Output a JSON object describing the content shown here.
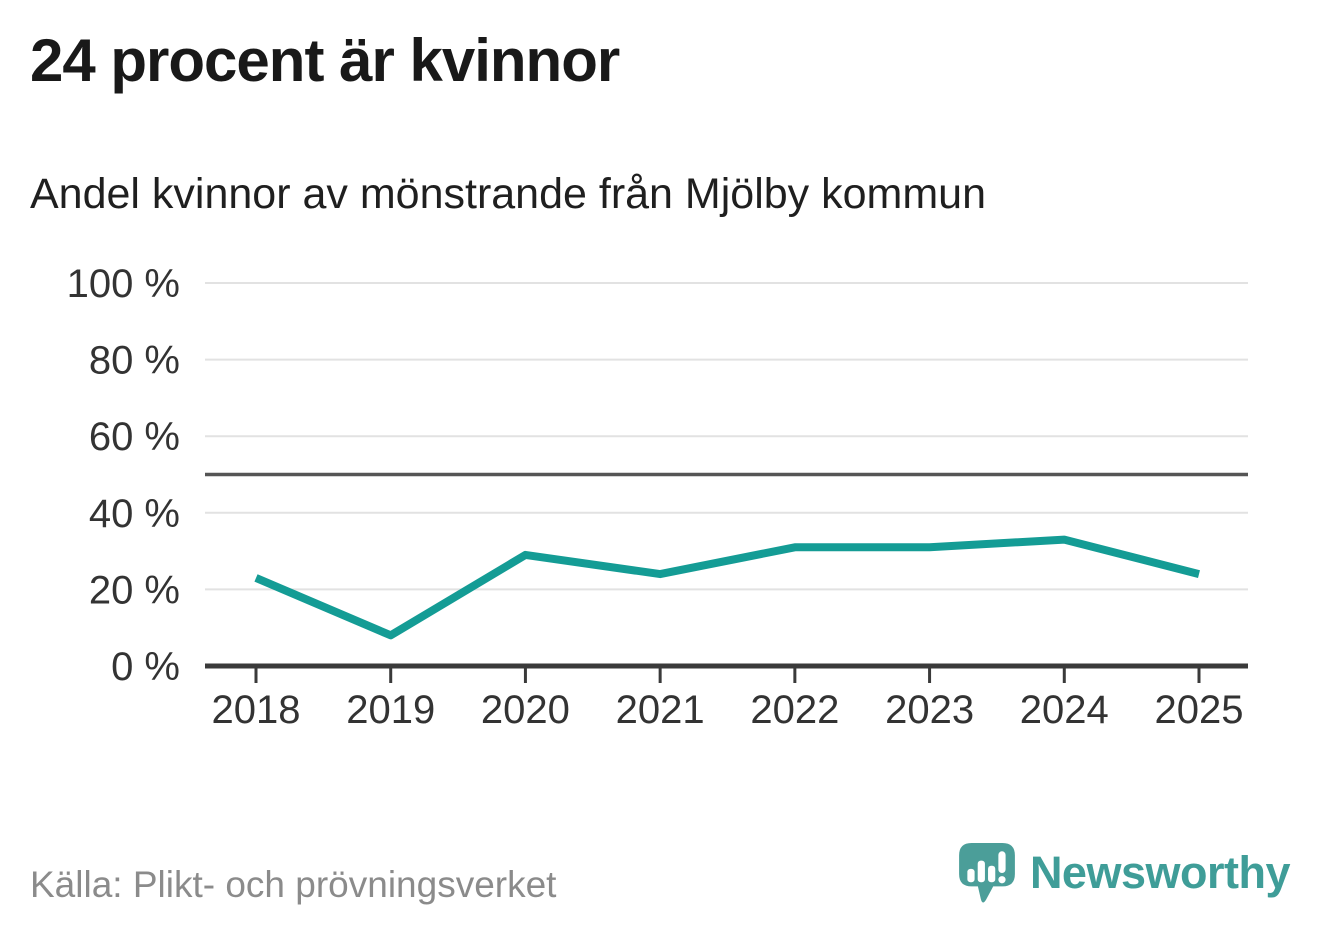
{
  "header": {
    "title": "24 procent är kvinnor",
    "subtitle": "Andel kvinnor av mönstrande från Mjölby kommun"
  },
  "chart_data": {
    "type": "line",
    "title": "24 procent är kvinnor",
    "subtitle": "Andel kvinnor av mönstrande från Mjölby kommun",
    "x": [
      "2018",
      "2019",
      "2020",
      "2021",
      "2022",
      "2023",
      "2024",
      "2025"
    ],
    "series": [
      {
        "name": "Andel kvinnor av mönstrande, Mjölby kommun",
        "values": [
          23,
          8,
          29,
          24,
          31,
          31,
          33,
          24
        ]
      }
    ],
    "unit": "%",
    "ylim": [
      0,
      100
    ],
    "yticks": [
      0,
      20,
      40,
      60,
      80,
      100
    ],
    "ytick_format": "{v} %",
    "reference_line": 50,
    "grid": "horizontal",
    "legend": "none",
    "colors": {
      "line": "#149c95",
      "gridline": "#e2e2e2",
      "reference_line": "#555555",
      "axis": "#3a3a3a",
      "tick_label": "#333333"
    }
  },
  "footer": {
    "source": "Källa: Plikt- och prövningsverket",
    "brand": "Newsworthy",
    "brand_color": "#3f9d98",
    "logo_color": "#4b9e99"
  }
}
